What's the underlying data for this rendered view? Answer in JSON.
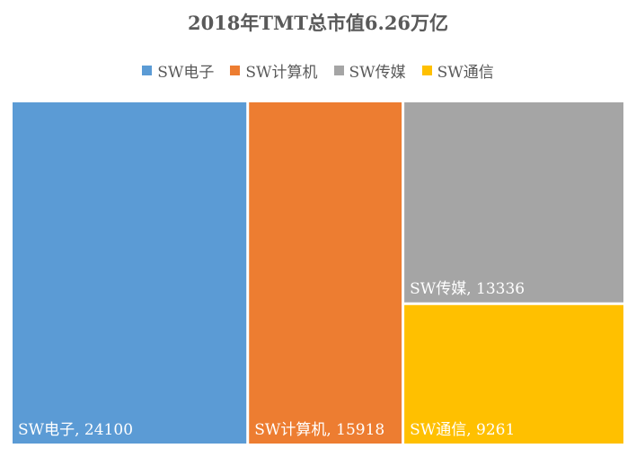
{
  "chart_data": {
    "type": "treemap",
    "title": "2018年TMT总市值6.26万亿",
    "legend_position": "top",
    "categories": [
      "SW电子",
      "SW计算机",
      "SW传媒",
      "SW通信"
    ],
    "values": [
      24100,
      15918,
      13336,
      9261
    ],
    "data_labels": [
      "SW电子, 24100",
      "SW计算机, 15918",
      "SW传媒, 13336",
      "SW通信, 9261"
    ],
    "colors": [
      "#5b9bd5",
      "#ed7d31",
      "#a5a5a5",
      "#ffc000"
    ]
  }
}
